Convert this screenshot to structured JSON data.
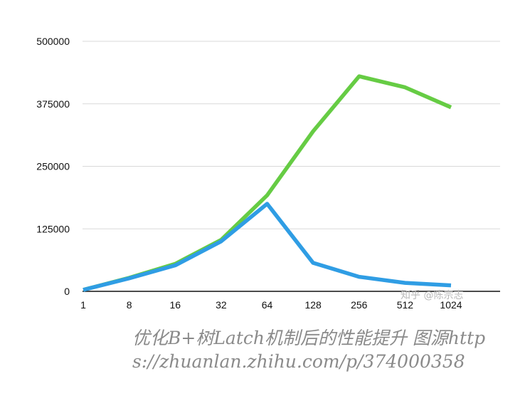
{
  "chart_data": {
    "type": "line",
    "title": "",
    "xlabel": "",
    "ylabel": "",
    "categories": [
      "1",
      "8",
      "16",
      "32",
      "64",
      "128",
      "256",
      "512",
      "1024"
    ],
    "ylim": [
      0,
      500000
    ],
    "yticks": [
      0,
      125000,
      250000,
      375000,
      500000
    ],
    "ytick_labels": [
      "0",
      "125000",
      "250000",
      "375000",
      "500000"
    ],
    "grid": true,
    "legend": "none",
    "series": [
      {
        "color": "#66cc44",
        "values": [
          3000,
          27000,
          55000,
          103000,
          192000,
          320000,
          430000,
          408000,
          368000
        ]
      },
      {
        "color": "#2f9de4",
        "values": [
          3000,
          26000,
          52000,
          100000,
          175000,
          57000,
          29000,
          17000,
          12000
        ]
      }
    ]
  },
  "watermark": "知乎 @陈宗志",
  "caption": "优化B+树Latch机制后的性能提升 图源https://zhuanlan.zhihu.com/p/374000358"
}
